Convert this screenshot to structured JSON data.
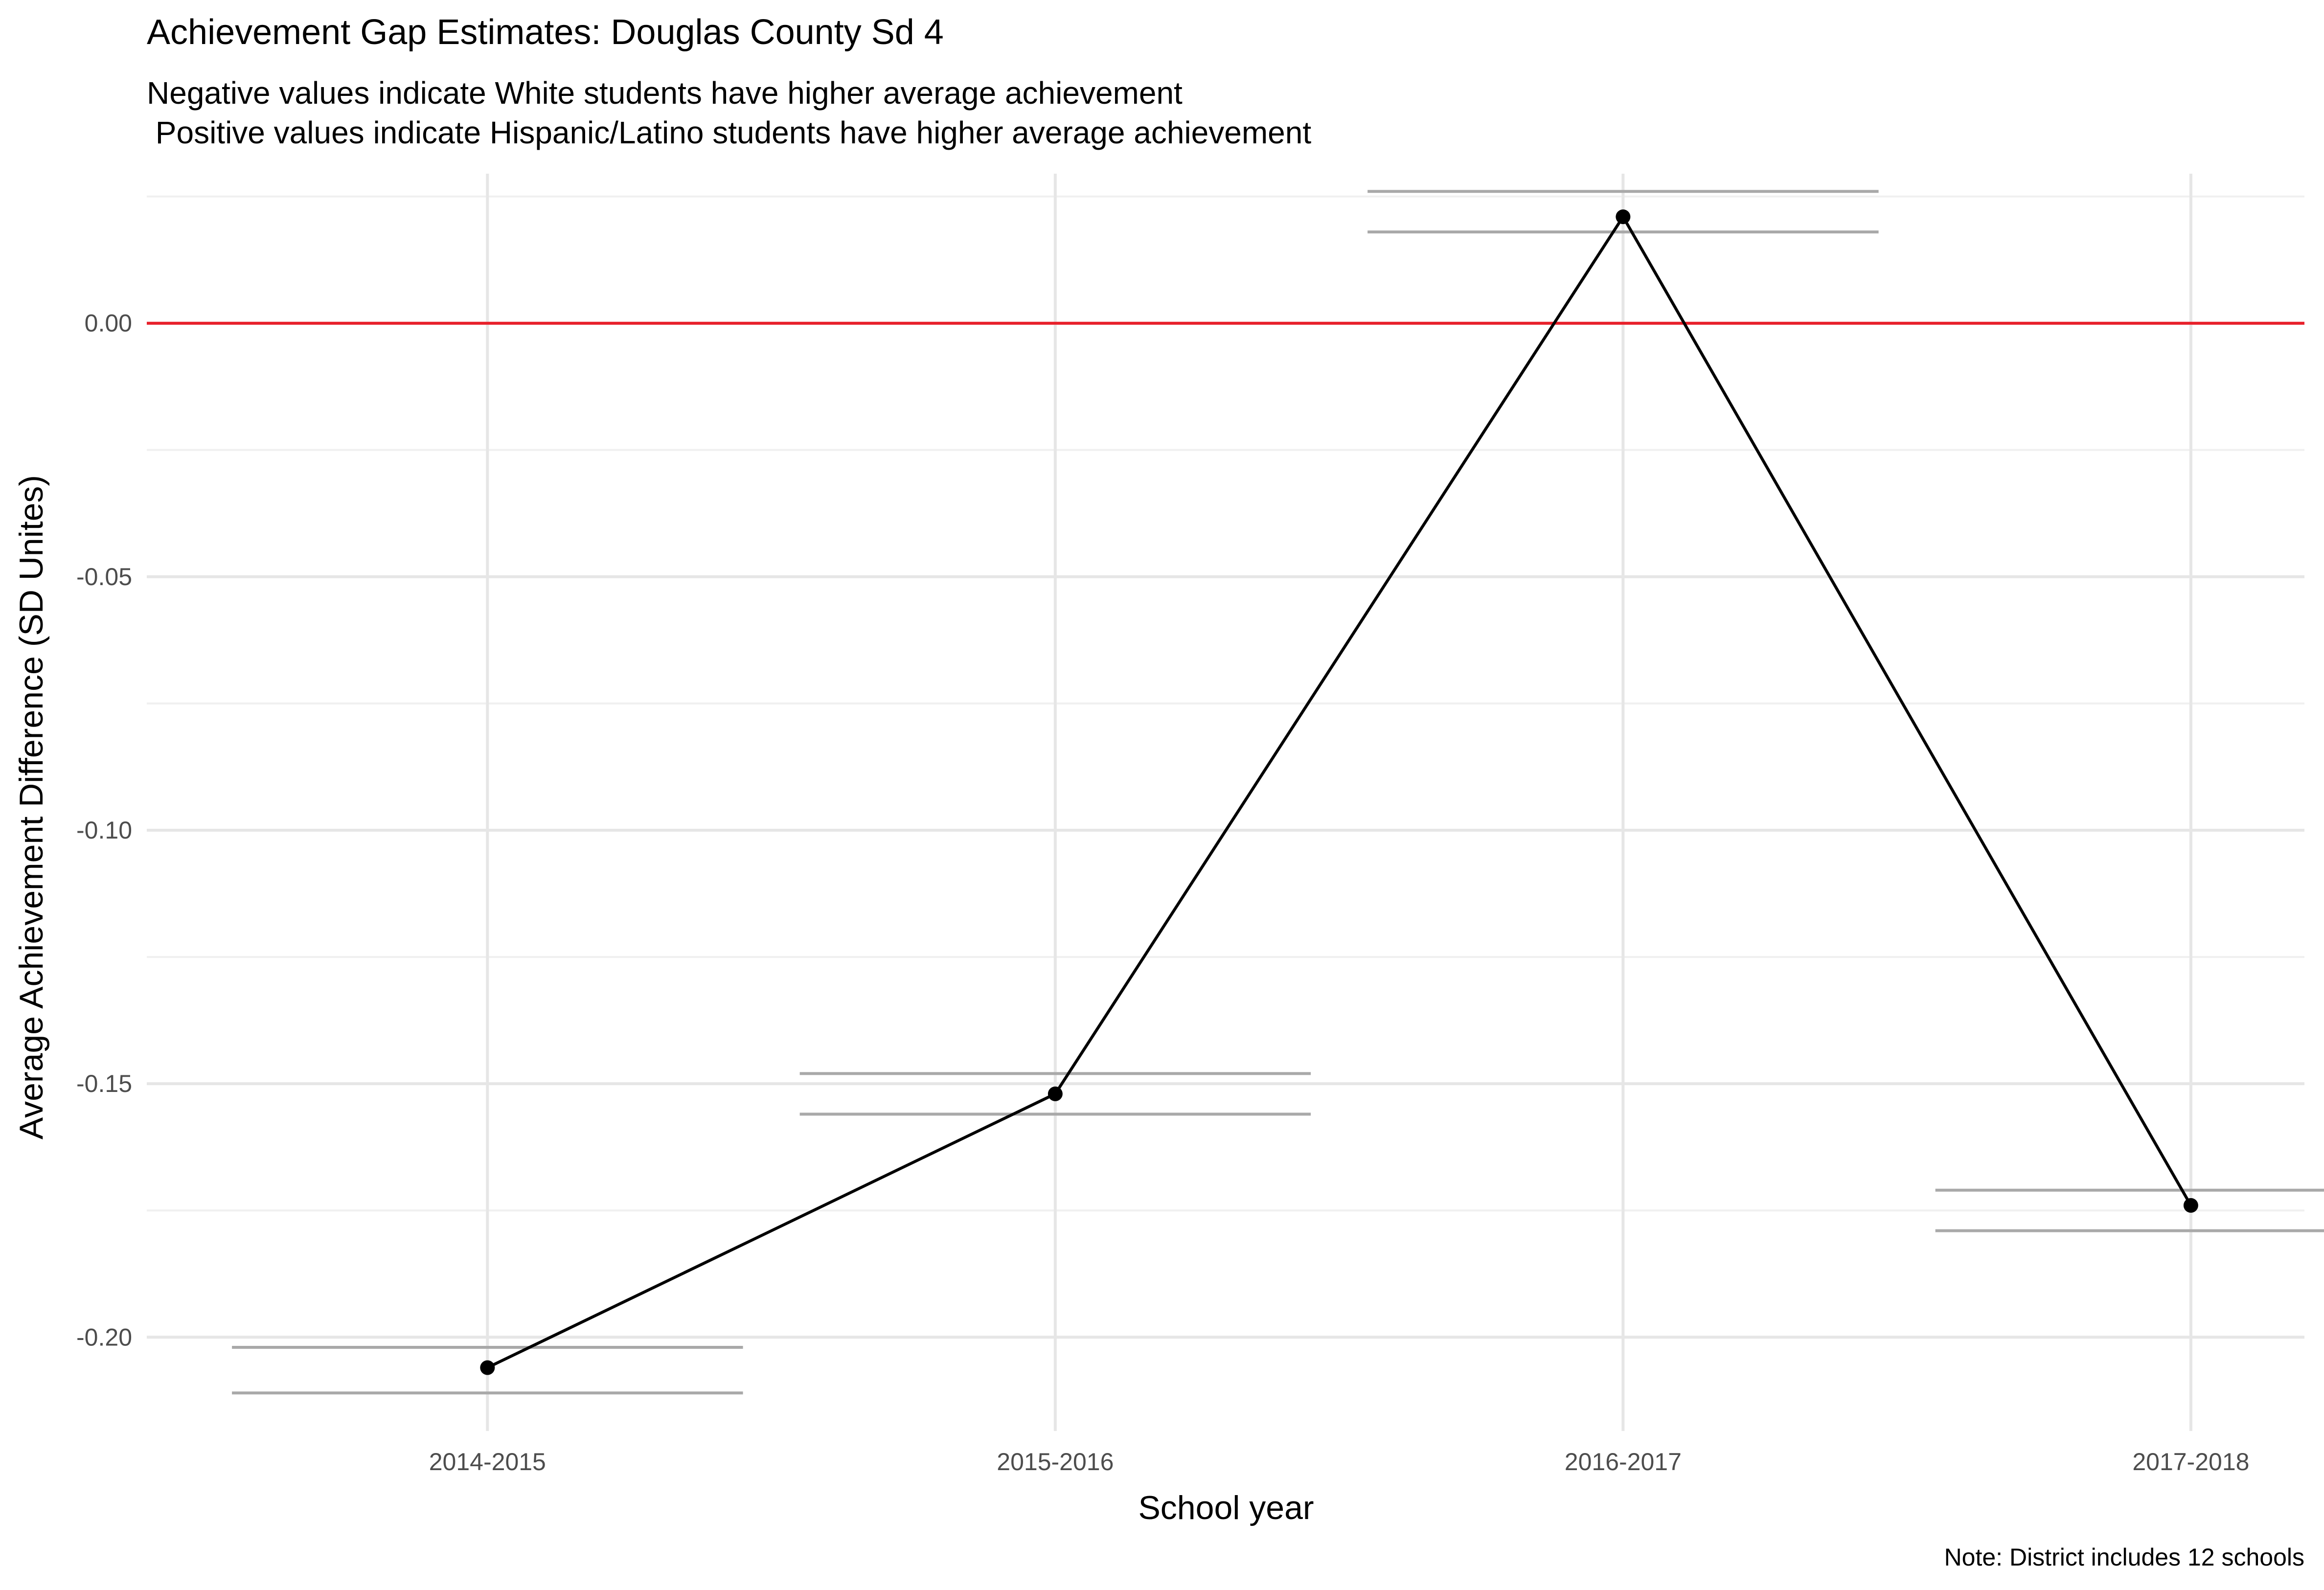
{
  "chart_data": {
    "type": "line",
    "title": "Achievement Gap Estimates: Douglas County Sd 4",
    "subtitle_lines": [
      "Negative values indicate White students have higher average achievement",
      " Positive values indicate Hispanic/Latino students have higher average achievement"
    ],
    "xlabel": "School year",
    "ylabel": "Average Achievement Difference (SD Unites)",
    "caption": "Note: District includes 12 schools",
    "categories": [
      "2014-2015",
      "2015-2016",
      "2016-2017",
      "2017-2018"
    ],
    "values": [
      -0.206,
      -0.152,
      0.021,
      -0.174
    ],
    "interval_lower": [
      -0.211,
      -0.156,
      0.018,
      -0.179
    ],
    "interval_upper": [
      -0.202,
      -0.148,
      0.026,
      -0.171
    ],
    "yticks": [
      0.0,
      -0.05,
      -0.1,
      -0.15,
      -0.2
    ],
    "ytick_labels": [
      "0.00",
      "-0.05",
      "-0.10",
      "-0.15",
      "-0.20"
    ],
    "ylim": [
      -0.2185,
      0.0295
    ],
    "reference_line": 0.0,
    "grid": true,
    "legend": "none",
    "colors": {
      "line": "#000000",
      "points": "#000000",
      "interval": "#a9a9a9",
      "reference": "#e8202a",
      "grid": "#e6e6e6"
    }
  }
}
